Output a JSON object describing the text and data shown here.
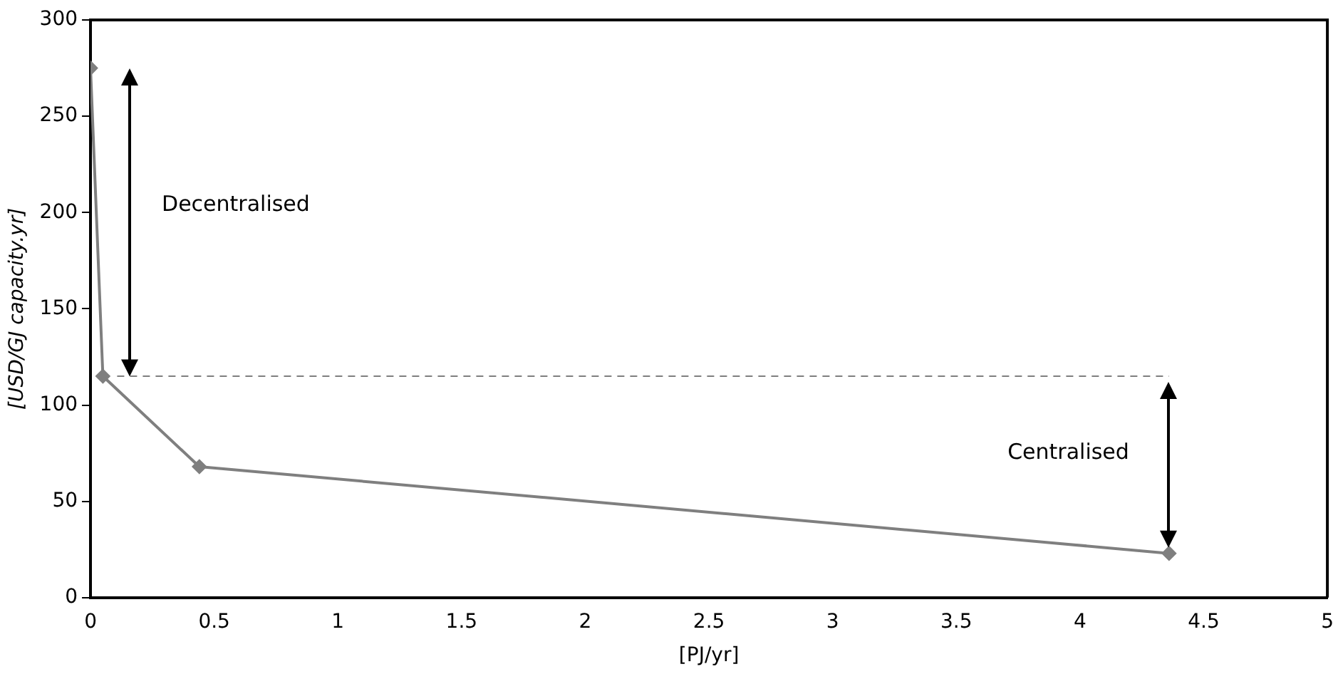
{
  "chart_data": {
    "type": "line",
    "xlabel": "[PJ/yr]",
    "ylabel": "[USD/GJ capacity.yr]",
    "x": [
      0,
      0.05,
      0.44,
      4.36
    ],
    "series": [
      {
        "color": "#7f7f7f",
        "values": [
          275,
          115,
          68,
          23
        ]
      }
    ],
    "xlim": [
      0,
      5
    ],
    "xticks": [
      0,
      0.5,
      1,
      1.5,
      2,
      2.5,
      3,
      3.5,
      4,
      4.5,
      5
    ],
    "ylim": [
      0,
      300
    ],
    "yticks": [
      0,
      50,
      100,
      150,
      200,
      250,
      300
    ],
    "grid": false,
    "legend": false,
    "marker": "diamond",
    "line_style": "solid",
    "ref_lines": [
      {
        "axis": "y",
        "value": 115,
        "color": "#7f7f7f",
        "line_style": "dashed"
      }
    ],
    "annotations": [
      "Decentralised",
      "Centralised"
    ]
  }
}
